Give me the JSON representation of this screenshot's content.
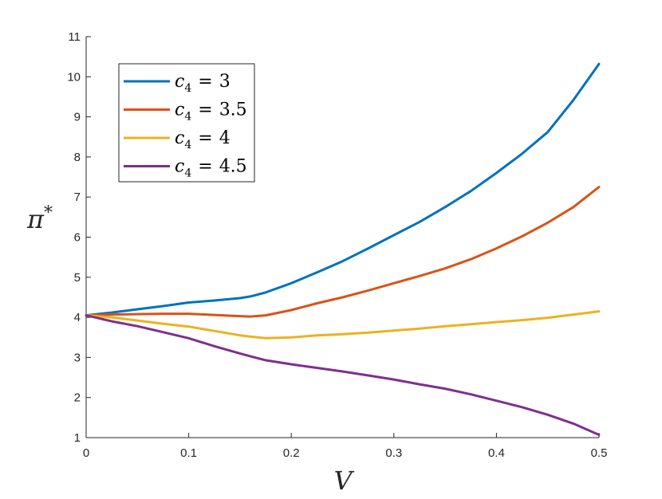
{
  "chart_data": {
    "type": "line",
    "title": "",
    "xlabel": "V",
    "ylabel": "π",
    "ylabel_superscript": "*",
    "xlim": [
      0,
      0.5
    ],
    "ylim": [
      1,
      11
    ],
    "xticks": [
      0,
      0.1,
      0.2,
      0.3,
      0.4,
      0.5
    ],
    "xtick_labels": [
      "0",
      "0.1",
      "0.2",
      "0.3",
      "0.4",
      "0.5"
    ],
    "yticks": [
      1,
      2,
      3,
      4,
      5,
      6,
      7,
      8,
      9,
      10,
      11
    ],
    "ytick_labels": [
      "1",
      "2",
      "3",
      "4",
      "5",
      "6",
      "7",
      "8",
      "9",
      "10",
      "11"
    ],
    "grid": false,
    "legend_position": "top-left",
    "x": [
      0,
      0.025,
      0.05,
      0.075,
      0.1,
      0.125,
      0.15,
      0.16,
      0.175,
      0.2,
      0.225,
      0.25,
      0.275,
      0.3,
      0.325,
      0.35,
      0.375,
      0.4,
      0.425,
      0.45,
      0.475,
      0.5
    ],
    "series": [
      {
        "name": "c4 = 3",
        "legend_var": "c",
        "legend_sub": "4",
        "legend_op": "=",
        "legend_val": "3",
        "color": "#0072BD",
        "values": [
          4.05,
          4.12,
          4.2,
          4.28,
          4.37,
          4.42,
          4.48,
          4.52,
          4.62,
          4.85,
          5.12,
          5.4,
          5.72,
          6.05,
          6.38,
          6.75,
          7.15,
          7.6,
          8.08,
          8.62,
          9.42,
          10.32
        ]
      },
      {
        "name": "c4 = 3.5",
        "legend_var": "c",
        "legend_sub": "4",
        "legend_op": "=",
        "legend_val": "3.5",
        "color": "#D95319",
        "values": [
          4.05,
          4.07,
          4.08,
          4.09,
          4.09,
          4.06,
          4.03,
          4.02,
          4.05,
          4.18,
          4.35,
          4.5,
          4.67,
          4.85,
          5.03,
          5.22,
          5.45,
          5.72,
          6.02,
          6.36,
          6.75,
          7.25
        ]
      },
      {
        "name": "c4 = 4",
        "legend_var": "c",
        "legend_sub": "4",
        "legend_op": "=",
        "legend_val": "4",
        "color": "#EDB120",
        "values": [
          4.05,
          4.0,
          3.92,
          3.84,
          3.77,
          3.66,
          3.55,
          3.52,
          3.48,
          3.5,
          3.55,
          3.58,
          3.62,
          3.67,
          3.72,
          3.78,
          3.83,
          3.88,
          3.93,
          3.99,
          4.07,
          4.15
        ]
      },
      {
        "name": "c4 = 4.5",
        "legend_var": "c",
        "legend_sub": "4",
        "legend_op": "=",
        "legend_val": "4.5",
        "color": "#7E2F8E",
        "values": [
          4.05,
          3.9,
          3.78,
          3.63,
          3.48,
          3.28,
          3.1,
          3.03,
          2.93,
          2.83,
          2.74,
          2.65,
          2.55,
          2.45,
          2.33,
          2.22,
          2.08,
          1.92,
          1.76,
          1.57,
          1.35,
          1.07
        ]
      }
    ]
  }
}
